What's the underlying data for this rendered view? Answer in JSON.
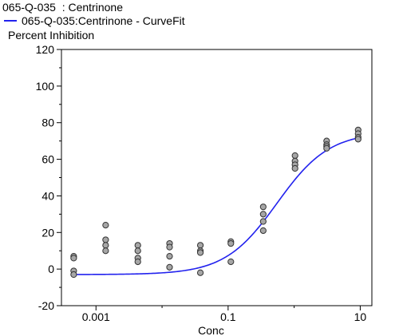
{
  "chart_data": {
    "type": "scatter",
    "title": "065-Q-035  : Centrinone",
    "ylabel": "Percent Inhibition",
    "xlabel": "Conc",
    "xscale": "log",
    "xlim": [
      0.0003,
      15
    ],
    "ylim": [
      -20,
      120
    ],
    "x_ticks": [
      0.001,
      0.1,
      10
    ],
    "x_tick_labels": [
      "0.001",
      "0.1",
      "10"
    ],
    "y_ticks": [
      -20,
      0,
      20,
      40,
      60,
      80,
      100,
      120
    ],
    "y_tick_labels": [
      "-20",
      "0",
      "20",
      "40",
      "60",
      "80",
      "100",
      "120"
    ],
    "grid": false,
    "legend_position": "top-left",
    "series": [
      {
        "kind": "points",
        "color": "#a6a6a6",
        "x": [
          0.00046,
          0.00046,
          0.00046,
          0.00046,
          0.0014,
          0.0014,
          0.0014,
          0.0014,
          0.0043,
          0.0043,
          0.0043,
          0.0043,
          0.013,
          0.013,
          0.013,
          0.013,
          0.038,
          0.038,
          0.038,
          0.038,
          0.11,
          0.11,
          0.11,
          0.34,
          0.34,
          0.34,
          0.34,
          1.03,
          1.03,
          1.03,
          1.03,
          3.1,
          3.1,
          3.1,
          3.1,
          9.3,
          9.3,
          9.3,
          9.3
        ],
        "y": [
          7,
          6,
          -1,
          -3,
          24,
          16,
          13,
          10,
          13,
          10,
          6,
          4,
          14,
          12,
          7,
          1,
          13,
          10,
          9,
          -2,
          15,
          14,
          4,
          34,
          30,
          26,
          21,
          62,
          59,
          57,
          55,
          70,
          68,
          67,
          66,
          76,
          74,
          72,
          71
        ]
      },
      {
        "kind": "curve",
        "name": "065-Q-035:Centrinone - CurveFit",
        "color": "#2222ee",
        "bottom": -3,
        "top": 75,
        "ec50": 0.55,
        "hill": 1.1
      }
    ]
  }
}
